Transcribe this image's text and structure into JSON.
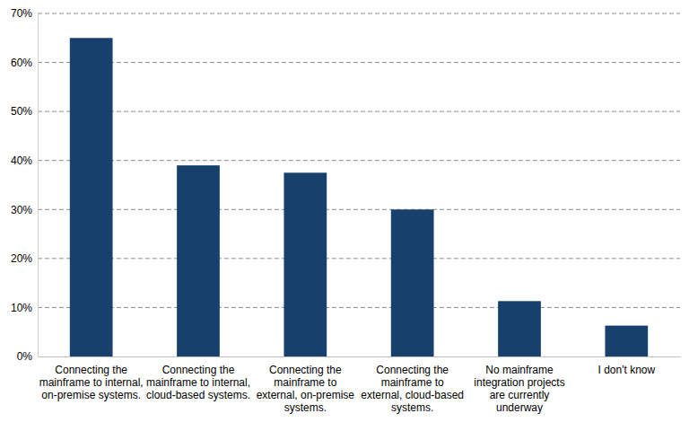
{
  "chart_data": {
    "type": "bar",
    "categories": [
      "Connecting the mainframe to internal, on-premise systems.",
      "Connecting the mainframe to internal, cloud-based systems.",
      "Connecting the mainframe to external, on-premise systems.",
      "Connecting the mainframe to external, cloud-based systems.",
      "No mainframe integration projects are currently underway",
      "I don't know"
    ],
    "values": [
      65,
      39,
      37.5,
      30,
      11.3,
      6.3
    ],
    "color": "#17406d",
    "ylim": [
      0,
      70
    ],
    "yticks": [
      {
        "value": 0,
        "label": "0%"
      },
      {
        "value": 10,
        "label": "10%"
      },
      {
        "value": 20,
        "label": "20%"
      },
      {
        "value": 30,
        "label": "30%"
      },
      {
        "value": 40,
        "label": "40%"
      },
      {
        "value": 50,
        "label": "50%"
      },
      {
        "value": 60,
        "label": "60%"
      },
      {
        "value": 70,
        "label": "70%"
      }
    ],
    "grid": true
  }
}
